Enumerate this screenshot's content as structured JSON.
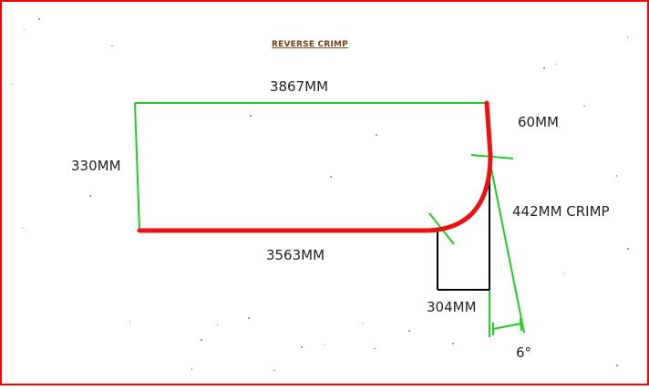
{
  "title": "REVERSE CRIMP",
  "labels": {
    "top_length": "3867MM",
    "left_height": "330MM",
    "bottom_length": "3563MM",
    "right_drop": "60MM",
    "crimp": "442MM CRIMP",
    "offset": "304MM",
    "angle": "6°"
  },
  "colors": {
    "border": "#ff0000",
    "profile": "#ee1111",
    "guide": "#22cc22",
    "construction": "#000000",
    "title": "#7a3b0f",
    "text": "#222222"
  }
}
